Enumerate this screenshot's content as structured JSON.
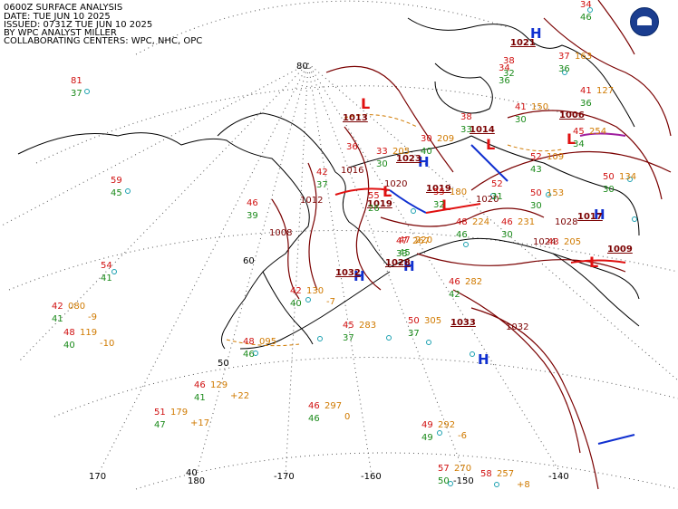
{
  "header": {
    "line1": "0600Z SURFACE ANALYSIS",
    "line2": "DATE: TUE JUN 10 2025",
    "line3": "ISSUED: 0731Z TUE JUN 10 2025",
    "line4": "BY WPC ANALYST MILLER",
    "line5": "COLLABORATING CENTERS: WPC, NHC, OPC"
  },
  "logo": {
    "name": "noaa-logo"
  },
  "grid_labels": {
    "lat80": "80",
    "lat60": "60",
    "lat50": "50",
    "lat40": "40",
    "lon170": "170",
    "lon180": "180",
    "lonm170": "-170",
    "lonm160": "-160",
    "lonm150": "-150",
    "lonm140": "-140"
  },
  "pressure_centers": [
    {
      "type": "L",
      "value": "1013"
    },
    {
      "type": "L",
      "value": "1019"
    },
    {
      "type": "L",
      "value": "1019"
    },
    {
      "type": "L",
      "value": "1006"
    },
    {
      "type": "L",
      "value": "1009"
    },
    {
      "type": "L",
      "value": "1014"
    },
    {
      "type": "H",
      "value": "1023"
    },
    {
      "type": "H",
      "value": "1021"
    },
    {
      "type": "H",
      "value": "1017"
    },
    {
      "type": "H",
      "value": "1032"
    },
    {
      "type": "H",
      "value": "1033"
    },
    {
      "type": "H",
      "value": "1028"
    }
  ],
  "isobar_labels": [
    "1008",
    "1012",
    "1016",
    "1020",
    "1024",
    "1028",
    "1032",
    "1020"
  ],
  "stations": [
    {
      "t": "81",
      "td": "37"
    },
    {
      "t": "59",
      "td": "45"
    },
    {
      "t": "54",
      "td": "41"
    },
    {
      "t": "42",
      "td": "41",
      "p": "080",
      "tend": "-9"
    },
    {
      "t": "48",
      "td": "40",
      "p": "119",
      "tend": "-10"
    },
    {
      "t": "48",
      "td": "46",
      "p": "095"
    },
    {
      "t": "46",
      "td": "41",
      "p": "129",
      "tend": "+22"
    },
    {
      "t": "51",
      "td": "47",
      "p": "179",
      "tend": "+17"
    },
    {
      "t": "46",
      "td": "39"
    },
    {
      "t": "42",
      "td": "40",
      "p": "130",
      "tend": "-7"
    },
    {
      "t": "45",
      "td": "37",
      "p": "283"
    },
    {
      "t": "47",
      "td": "45",
      "p": "220"
    },
    {
      "t": "46",
      "td": "46",
      "p": "297",
      "tend": "0"
    },
    {
      "t": "50",
      "td": "37",
      "p": "305"
    },
    {
      "t": "49",
      "td": "49",
      "p": "292",
      "tend": "-6"
    },
    {
      "t": "57",
      "td": "50",
      "p": "270"
    },
    {
      "t": "58",
      "p": "257",
      "tend": "+8"
    },
    {
      "t": "46",
      "td": "42",
      "p": "282"
    },
    {
      "t": "46",
      "td": "30",
      "p": "231"
    },
    {
      "t": "43",
      "p": "205"
    },
    {
      "t": "48",
      "td": "46",
      "p": "224"
    },
    {
      "t": "52",
      "td": "43",
      "p": "109"
    },
    {
      "t": "50",
      "td": "30",
      "p": "153"
    },
    {
      "t": "41",
      "td": "36",
      "p": "127"
    },
    {
      "t": "37",
      "td": "36",
      "p": "163"
    },
    {
      "t": "45",
      "td": "34",
      "p": "254"
    },
    {
      "t": "50",
      "td": "30",
      "p": "134"
    },
    {
      "t": "33",
      "td": "30",
      "p": "205"
    },
    {
      "t": "36"
    },
    {
      "t": "42",
      "td": "37"
    },
    {
      "t": "55",
      "td": "26"
    },
    {
      "t": "38",
      "td": "33"
    },
    {
      "t": "34",
      "td": "36"
    },
    {
      "t": "30",
      "td": "40",
      "p": "209"
    },
    {
      "t": "38",
      "td": "32"
    },
    {
      "t": "52",
      "td": "31"
    },
    {
      "t": "55",
      "td": "32",
      "p": "180"
    },
    {
      "t": "34",
      "td": "46"
    },
    {
      "t": "41",
      "td": "30",
      "p": "150"
    },
    {
      "t": "47",
      "td": "33",
      "p": "267"
    }
  ],
  "colors": {
    "temp": "#d01010",
    "dewpoint": "#1a8a1a",
    "pressure": "#d07a00",
    "isobar": "#7a0000",
    "high": "#1030d0",
    "low": "#e01010",
    "coast": "#000000",
    "grid": "#555555"
  }
}
